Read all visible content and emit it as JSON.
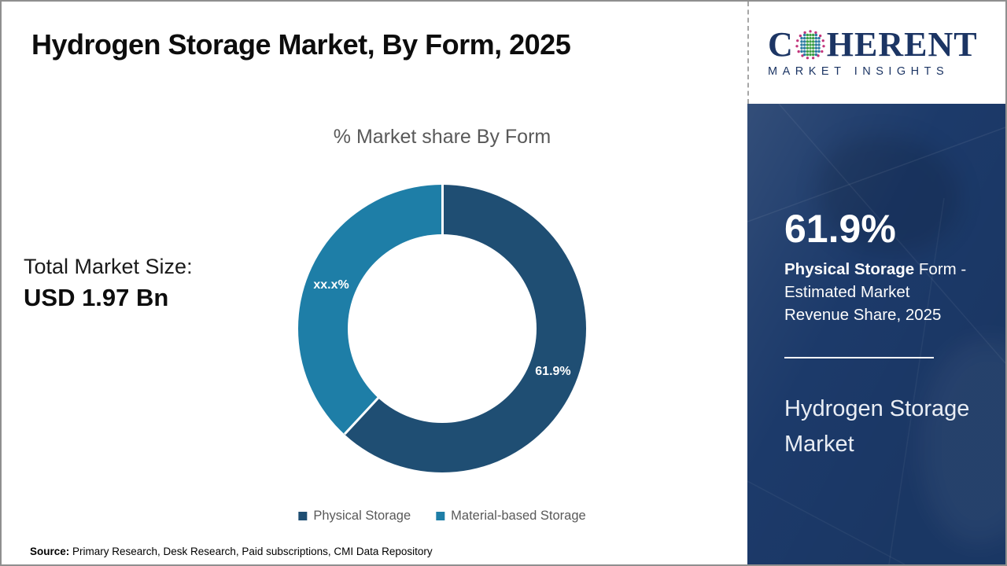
{
  "header": {
    "title": "Hydrogen Storage Market, By Form, 2025"
  },
  "logo": {
    "prefix": "C",
    "suffix": "HERENT",
    "subtitle": "MARKET INSIGHTS",
    "globe_icon": "dotted-globe",
    "navy": "#1c3564",
    "dot_colors": {
      "ring": "#c2347b",
      "center": "#3fa047",
      "side": "#2d7ca3"
    }
  },
  "market_size": {
    "label": "Total Market Size:",
    "value": "USD 1.97 Bn"
  },
  "chart_data": {
    "type": "pie",
    "subtype": "donut",
    "title": "% Market share By Form",
    "series": [
      {
        "name": "Physical Storage",
        "value": 61.9,
        "label": "61.9%",
        "color": "#1F4E73"
      },
      {
        "name": "Material-based Storage",
        "value": 38.1,
        "label": "xx.x%",
        "color": "#1E7EA7"
      }
    ],
    "start_angle_deg": 0,
    "direction": "clockwise",
    "inner_radius_ratio": 0.655,
    "slice_separator_color": "#ffffff",
    "legend_position": "bottom",
    "label_color": "#ffffff"
  },
  "sidebar": {
    "highlight_value": "61.9%",
    "highlight_bold": "Physical Storage",
    "highlight_rest": " Form - Estimated Market Revenue Share, 2025",
    "market_name": "Hydrogen Storage Market",
    "bg_color": "#1c3a6a"
  },
  "source": {
    "label": "Source:",
    "text": " Primary Research, Desk Research, Paid subscriptions, CMI Data Repository"
  }
}
